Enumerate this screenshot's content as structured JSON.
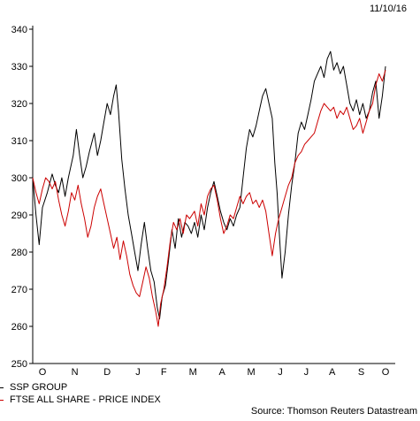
{
  "date_label": "11/10/16",
  "source_label": "Source: Thomson Reuters Datastream",
  "chart_data": {
    "type": "line",
    "title": "",
    "xlabel": "",
    "ylabel": "",
    "ylim": [
      250,
      340
    ],
    "yticks": [
      250,
      260,
      270,
      280,
      290,
      300,
      310,
      320,
      330,
      340
    ],
    "x_tick_labels": [
      "O",
      "N",
      "D",
      "J",
      "F",
      "M",
      "A",
      "M",
      "J",
      "J",
      "A",
      "S",
      "O"
    ],
    "x_tick_positions": [
      0.03,
      0.13,
      0.23,
      0.325,
      0.405,
      0.495,
      0.585,
      0.675,
      0.765,
      0.845,
      0.925,
      1.015,
      1.09
    ],
    "xlim": [
      0,
      1.12
    ],
    "grid": false,
    "legend_position": "bottom-left",
    "series": [
      {
        "name": "SSP GROUP",
        "color": "#000000",
        "points": [
          [
            0.0,
            300
          ],
          [
            0.01,
            290
          ],
          [
            0.02,
            282
          ],
          [
            0.03,
            292
          ],
          [
            0.045,
            296
          ],
          [
            0.06,
            301
          ],
          [
            0.07,
            298
          ],
          [
            0.08,
            296
          ],
          [
            0.09,
            300
          ],
          [
            0.1,
            295
          ],
          [
            0.11,
            300
          ],
          [
            0.125,
            306
          ],
          [
            0.135,
            313
          ],
          [
            0.145,
            306
          ],
          [
            0.155,
            300
          ],
          [
            0.165,
            303
          ],
          [
            0.175,
            307
          ],
          [
            0.19,
            312
          ],
          [
            0.2,
            306
          ],
          [
            0.21,
            310
          ],
          [
            0.22,
            315
          ],
          [
            0.23,
            320
          ],
          [
            0.24,
            317
          ],
          [
            0.25,
            322
          ],
          [
            0.258,
            325
          ],
          [
            0.265,
            318
          ],
          [
            0.275,
            305
          ],
          [
            0.285,
            297
          ],
          [
            0.295,
            290
          ],
          [
            0.305,
            285
          ],
          [
            0.315,
            280
          ],
          [
            0.325,
            275
          ],
          [
            0.335,
            282
          ],
          [
            0.345,
            288
          ],
          [
            0.355,
            281
          ],
          [
            0.365,
            275
          ],
          [
            0.375,
            272
          ],
          [
            0.385,
            265
          ],
          [
            0.392,
            262
          ],
          [
            0.4,
            268
          ],
          [
            0.41,
            271
          ],
          [
            0.42,
            278
          ],
          [
            0.43,
            286
          ],
          [
            0.44,
            281
          ],
          [
            0.45,
            289
          ],
          [
            0.46,
            284
          ],
          [
            0.47,
            288
          ],
          [
            0.48,
            287
          ],
          [
            0.49,
            285
          ],
          [
            0.5,
            288
          ],
          [
            0.51,
            284
          ],
          [
            0.52,
            290
          ],
          [
            0.53,
            286
          ],
          [
            0.54,
            292
          ],
          [
            0.55,
            296
          ],
          [
            0.56,
            299
          ],
          [
            0.57,
            295
          ],
          [
            0.58,
            291
          ],
          [
            0.59,
            288
          ],
          [
            0.6,
            286
          ],
          [
            0.61,
            289
          ],
          [
            0.62,
            287
          ],
          [
            0.63,
            290
          ],
          [
            0.64,
            292
          ],
          [
            0.65,
            300
          ],
          [
            0.66,
            308
          ],
          [
            0.67,
            313
          ],
          [
            0.68,
            311
          ],
          [
            0.69,
            314
          ],
          [
            0.7,
            318
          ],
          [
            0.71,
            322
          ],
          [
            0.72,
            324
          ],
          [
            0.73,
            320
          ],
          [
            0.74,
            316
          ],
          [
            0.748,
            304
          ],
          [
            0.755,
            296
          ],
          [
            0.762,
            285
          ],
          [
            0.77,
            273
          ],
          [
            0.78,
            280
          ],
          [
            0.79,
            290
          ],
          [
            0.8,
            298
          ],
          [
            0.81,
            304
          ],
          [
            0.82,
            312
          ],
          [
            0.83,
            315
          ],
          [
            0.84,
            313
          ],
          [
            0.85,
            317
          ],
          [
            0.86,
            321
          ],
          [
            0.87,
            326
          ],
          [
            0.88,
            328
          ],
          [
            0.89,
            330
          ],
          [
            0.9,
            327
          ],
          [
            0.91,
            332
          ],
          [
            0.92,
            334
          ],
          [
            0.93,
            329
          ],
          [
            0.94,
            331
          ],
          [
            0.95,
            328
          ],
          [
            0.96,
            330
          ],
          [
            0.97,
            325
          ],
          [
            0.98,
            320
          ],
          [
            0.99,
            318
          ],
          [
            1.0,
            321
          ],
          [
            1.01,
            317
          ],
          [
            1.02,
            320
          ],
          [
            1.03,
            316
          ],
          [
            1.04,
            318
          ],
          [
            1.05,
            323
          ],
          [
            1.06,
            326
          ],
          [
            1.07,
            316
          ],
          [
            1.08,
            322
          ],
          [
            1.09,
            330
          ]
        ]
      },
      {
        "name": "FTSE ALL SHARE - PRICE INDEX",
        "color": "#cc0000",
        "points": [
          [
            0.0,
            300
          ],
          [
            0.01,
            296
          ],
          [
            0.02,
            293
          ],
          [
            0.03,
            297
          ],
          [
            0.04,
            300
          ],
          [
            0.05,
            299
          ],
          [
            0.06,
            297
          ],
          [
            0.07,
            299
          ],
          [
            0.08,
            294
          ],
          [
            0.09,
            290
          ],
          [
            0.1,
            287
          ],
          [
            0.11,
            291
          ],
          [
            0.12,
            296
          ],
          [
            0.13,
            294
          ],
          [
            0.14,
            298
          ],
          [
            0.15,
            293
          ],
          [
            0.16,
            289
          ],
          [
            0.17,
            284
          ],
          [
            0.18,
            287
          ],
          [
            0.19,
            292
          ],
          [
            0.2,
            295
          ],
          [
            0.21,
            297
          ],
          [
            0.22,
            293
          ],
          [
            0.23,
            289
          ],
          [
            0.24,
            285
          ],
          [
            0.25,
            281
          ],
          [
            0.26,
            284
          ],
          [
            0.27,
            278
          ],
          [
            0.28,
            283
          ],
          [
            0.29,
            279
          ],
          [
            0.3,
            274
          ],
          [
            0.31,
            271
          ],
          [
            0.32,
            269
          ],
          [
            0.33,
            268
          ],
          [
            0.34,
            272
          ],
          [
            0.35,
            276
          ],
          [
            0.36,
            273
          ],
          [
            0.37,
            268
          ],
          [
            0.38,
            264
          ],
          [
            0.388,
            260
          ],
          [
            0.395,
            266
          ],
          [
            0.405,
            270
          ],
          [
            0.415,
            276
          ],
          [
            0.425,
            283
          ],
          [
            0.435,
            288
          ],
          [
            0.445,
            286
          ],
          [
            0.455,
            289
          ],
          [
            0.465,
            285
          ],
          [
            0.475,
            290
          ],
          [
            0.485,
            289
          ],
          [
            0.5,
            291
          ],
          [
            0.51,
            287
          ],
          [
            0.52,
            293
          ],
          [
            0.53,
            290
          ],
          [
            0.54,
            295
          ],
          [
            0.55,
            297
          ],
          [
            0.56,
            298
          ],
          [
            0.57,
            294
          ],
          [
            0.58,
            289
          ],
          [
            0.59,
            285
          ],
          [
            0.6,
            287
          ],
          [
            0.61,
            290
          ],
          [
            0.62,
            289
          ],
          [
            0.63,
            292
          ],
          [
            0.64,
            295
          ],
          [
            0.65,
            293
          ],
          [
            0.66,
            295
          ],
          [
            0.67,
            296
          ],
          [
            0.68,
            293
          ],
          [
            0.69,
            294
          ],
          [
            0.7,
            292
          ],
          [
            0.71,
            294
          ],
          [
            0.72,
            291
          ],
          [
            0.73,
            285
          ],
          [
            0.74,
            279
          ],
          [
            0.75,
            285
          ],
          [
            0.76,
            289
          ],
          [
            0.77,
            292
          ],
          [
            0.78,
            295
          ],
          [
            0.79,
            298
          ],
          [
            0.8,
            300
          ],
          [
            0.81,
            304
          ],
          [
            0.82,
            306
          ],
          [
            0.83,
            307
          ],
          [
            0.84,
            309
          ],
          [
            0.85,
            310
          ],
          [
            0.86,
            311
          ],
          [
            0.87,
            312
          ],
          [
            0.88,
            315
          ],
          [
            0.89,
            318
          ],
          [
            0.9,
            320
          ],
          [
            0.91,
            319
          ],
          [
            0.92,
            318
          ],
          [
            0.93,
            319
          ],
          [
            0.94,
            316
          ],
          [
            0.95,
            318
          ],
          [
            0.96,
            317
          ],
          [
            0.97,
            319
          ],
          [
            0.98,
            316
          ],
          [
            0.99,
            313
          ],
          [
            1.0,
            314
          ],
          [
            1.01,
            316
          ],
          [
            1.02,
            312
          ],
          [
            1.03,
            315
          ],
          [
            1.04,
            318
          ],
          [
            1.05,
            320
          ],
          [
            1.06,
            325
          ],
          [
            1.07,
            328
          ],
          [
            1.08,
            326
          ],
          [
            1.09,
            329
          ]
        ]
      }
    ]
  }
}
